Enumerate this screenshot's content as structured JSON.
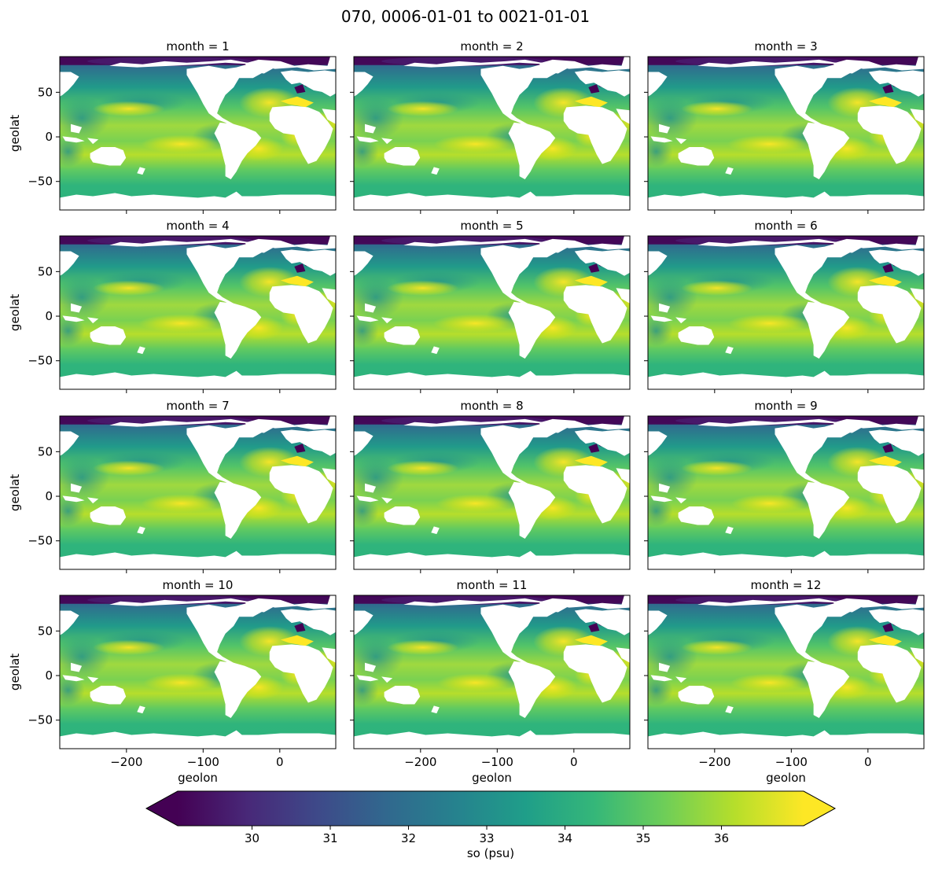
{
  "chart_data": {
    "type": "heatmap",
    "title": "070, 0006-01-01 to 0021-01-01",
    "layout": {
      "rows": 4,
      "cols": 3
    },
    "panels": [
      {
        "title": "month = 1"
      },
      {
        "title": "month = 2"
      },
      {
        "title": "month = 3"
      },
      {
        "title": "month = 4"
      },
      {
        "title": "month = 5"
      },
      {
        "title": "month = 6"
      },
      {
        "title": "month = 7"
      },
      {
        "title": "month = 8"
      },
      {
        "title": "month = 9"
      },
      {
        "title": "month = 10"
      },
      {
        "title": "month = 11"
      },
      {
        "title": "month = 12"
      }
    ],
    "xlabel": "geolon",
    "ylabel": "geolat",
    "xlim": [
      -287,
      73
    ],
    "ylim": [
      -82,
      90
    ],
    "xticks": [
      -200,
      -100,
      0
    ],
    "xtick_labels": [
      "−200",
      "−100",
      "0"
    ],
    "yticks": [
      -50,
      0,
      50
    ],
    "ytick_labels": [
      "−50",
      "0",
      "50"
    ],
    "colorbar": {
      "label": "so (psu)",
      "cmap": "viridis",
      "vmin": 29.05,
      "vmax": 37.05,
      "extend": "both",
      "ticks": [
        30,
        31,
        32,
        33,
        34,
        35,
        36
      ],
      "tick_labels": [
        "30",
        "31",
        "32",
        "33",
        "34",
        "35",
        "36"
      ]
    }
  },
  "colors": {
    "viridis_stops": [
      "#440154",
      "#482878",
      "#3e4989",
      "#31688e",
      "#26828e",
      "#1f9e89",
      "#35b779",
      "#6ece58",
      "#b5de2b",
      "#fde725"
    ],
    "land": "#ffffff",
    "frame": "#000000"
  }
}
